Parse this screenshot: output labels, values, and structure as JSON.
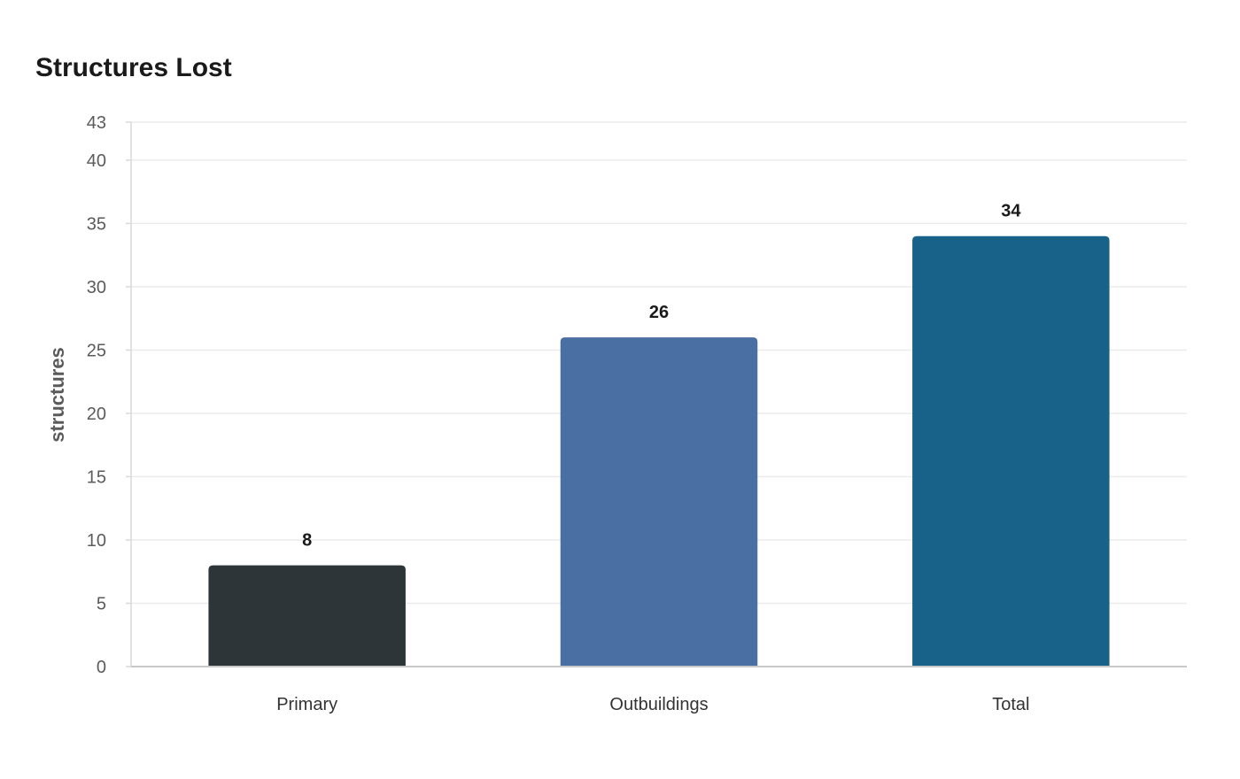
{
  "chart_data": {
    "type": "bar",
    "title": "Structures Lost",
    "ylabel": "structures",
    "xlabel": "",
    "categories": [
      "Primary",
      "Outbuildings",
      "Total"
    ],
    "values": [
      8,
      26,
      34
    ],
    "colors": [
      "#2e3538",
      "#4a6fa3",
      "#186289"
    ],
    "ylim": [
      0,
      43
    ],
    "yticks": [
      0,
      5,
      10,
      15,
      20,
      25,
      30,
      35,
      40,
      43
    ],
    "grid": true,
    "legend": "none"
  }
}
